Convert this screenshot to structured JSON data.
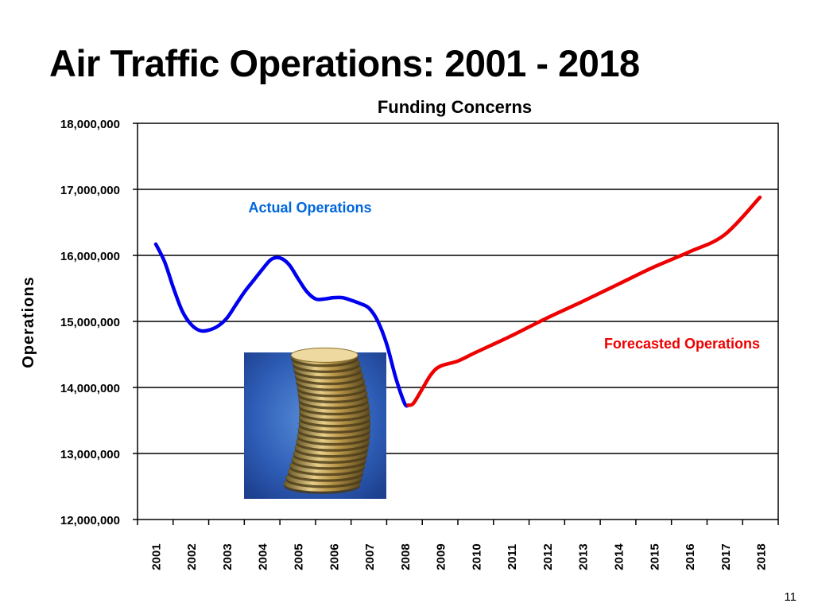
{
  "slide": {
    "title": "Air Traffic Operations: 2001 - 2018",
    "page_number": "11"
  },
  "colors": {
    "actual": "#0000ee",
    "forecast": "#ee0000",
    "actual_label": "#0066dd",
    "forecast_label": "#ee0000",
    "grid": "#000000"
  },
  "image": {
    "name": "stack-of-coins-photo"
  },
  "chart_data": {
    "type": "line",
    "title": "Funding Concerns",
    "xlabel": "",
    "ylabel": "Operations",
    "ylim": [
      12000000,
      18000000
    ],
    "xlim": [
      2001,
      2018
    ],
    "yticks": [
      12000000,
      13000000,
      14000000,
      15000000,
      16000000,
      17000000,
      18000000
    ],
    "ytick_labels": [
      "12,000,000",
      "13,000,000",
      "14,000,000",
      "15,000,000",
      "16,000,000",
      "17,000,000",
      "18,000,000"
    ],
    "xtick_labels": [
      "2001",
      "2002",
      "2003",
      "2004",
      "2005",
      "2006",
      "2007",
      "2008",
      "2009",
      "2010",
      "2011",
      "2012",
      "2013",
      "2014",
      "2015",
      "2016",
      "2017",
      "2018"
    ],
    "grid": true,
    "series": [
      {
        "name": "Actual Operations",
        "points": [
          [
            2001.0,
            16170000
          ],
          [
            2001.25,
            15900000
          ],
          [
            2001.5,
            15500000
          ],
          [
            2001.75,
            15150000
          ],
          [
            2002.0,
            14950000
          ],
          [
            2002.25,
            14860000
          ],
          [
            2002.5,
            14870000
          ],
          [
            2002.75,
            14930000
          ],
          [
            2003.0,
            15050000
          ],
          [
            2003.25,
            15250000
          ],
          [
            2003.5,
            15450000
          ],
          [
            2003.75,
            15620000
          ],
          [
            2004.0,
            15790000
          ],
          [
            2004.25,
            15940000
          ],
          [
            2004.5,
            15960000
          ],
          [
            2004.75,
            15860000
          ],
          [
            2005.0,
            15650000
          ],
          [
            2005.25,
            15450000
          ],
          [
            2005.5,
            15340000
          ],
          [
            2005.75,
            15340000
          ],
          [
            2006.0,
            15360000
          ],
          [
            2006.25,
            15360000
          ],
          [
            2006.5,
            15320000
          ],
          [
            2006.75,
            15270000
          ],
          [
            2007.0,
            15200000
          ],
          [
            2007.25,
            15000000
          ],
          [
            2007.5,
            14650000
          ],
          [
            2007.75,
            14150000
          ],
          [
            2008.0,
            13760000
          ],
          [
            2008.1,
            13730000
          ]
        ]
      },
      {
        "name": "Forecasted Operations",
        "points": [
          [
            2008.1,
            13730000
          ],
          [
            2008.25,
            13760000
          ],
          [
            2008.5,
            13980000
          ],
          [
            2008.75,
            14200000
          ],
          [
            2009.0,
            14320000
          ],
          [
            2009.5,
            14400000
          ],
          [
            2010.0,
            14530000
          ],
          [
            2011.0,
            14780000
          ],
          [
            2012.0,
            15050000
          ],
          [
            2013.0,
            15300000
          ],
          [
            2014.0,
            15560000
          ],
          [
            2015.0,
            15820000
          ],
          [
            2016.0,
            16050000
          ],
          [
            2017.0,
            16310000
          ],
          [
            2018.0,
            16880000
          ]
        ]
      }
    ],
    "annotations": [
      {
        "text": "Actual Operations",
        "series": 0
      },
      {
        "text": "Forecasted Operations",
        "series": 1
      }
    ]
  }
}
